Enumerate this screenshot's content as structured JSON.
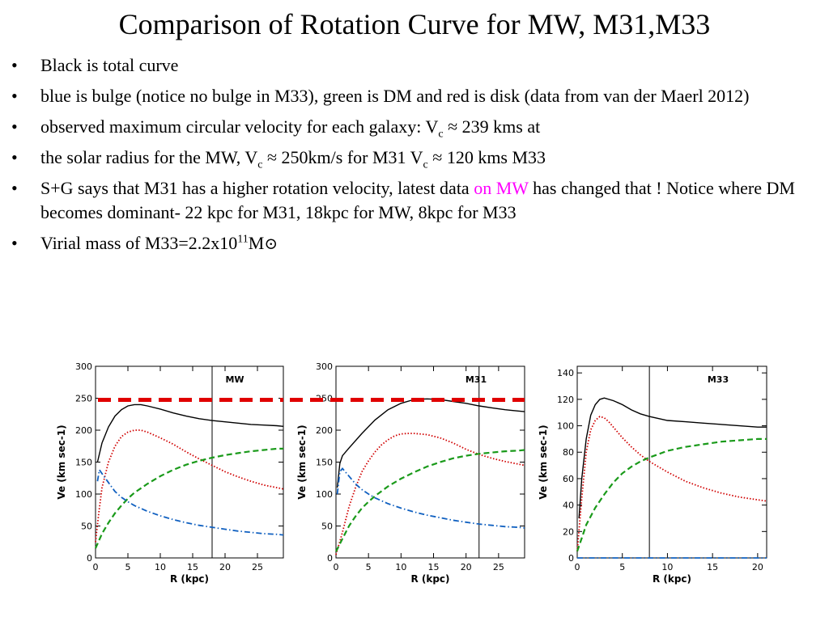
{
  "slide": {
    "title": "Comparison of Rotation Curve for MW, M31,M33",
    "bullet_marker": "•",
    "bullets": {
      "b1": "Black is total curve",
      "b2": "blue is bulge (notice no bulge in M33), green is DM and red is disk (data from van der Maerl 2012)",
      "b3_pre": "observed maximum circular velocity for each galaxy: V",
      "b3_sub": "c",
      "b3_post": " ≈ 239 kms at",
      "b4_pre": "the solar radius for the MW, V",
      "b4_sub1": "c",
      "b4_mid": " ≈ 250km/s  for M31 V",
      "b4_sub2": "c",
      "b4_post": " ≈ 120 kms M33",
      "b5_pre": "S+G says that M31 has a higher rotation velocity, latest data ",
      "b5_highlight": "on MW",
      "b5_post": " has changed that ! Notice where DM becomes dominant- 22 kpc for M31, 18kpc for MW, 8kpc for M33",
      "b6_pre": "Virial mass of M33=2.2x10",
      "b6_sup": "11",
      "b6_mid": "M",
      "b6_sun": "⊙"
    },
    "highlight_color": "#ff00ff",
    "reference_line_color": "#e00000"
  },
  "chart_data": [
    {
      "type": "line",
      "title": "MW",
      "xlabel": "R (kpc)",
      "ylabel": "Ve (km sec-1)",
      "xlim": [
        0,
        29
      ],
      "ylim": [
        0,
        300
      ],
      "xticks": [
        0,
        5,
        10,
        15,
        20,
        25
      ],
      "yticks": [
        0,
        50,
        100,
        150,
        200,
        250,
        300
      ],
      "vline": 18,
      "series": [
        {
          "color": "#000000",
          "style": "solid",
          "values": [
            [
              0.3,
              150
            ],
            [
              1,
              180
            ],
            [
              2,
              205
            ],
            [
              3,
              222
            ],
            [
              4,
              232
            ],
            [
              5,
              238
            ],
            [
              6,
              240
            ],
            [
              7,
              240
            ],
            [
              8,
              238
            ],
            [
              10,
              233
            ],
            [
              12,
              227
            ],
            [
              14,
              222
            ],
            [
              16,
              218
            ],
            [
              18,
              215
            ],
            [
              20,
              213
            ],
            [
              22,
              211
            ],
            [
              24,
              209
            ],
            [
              26,
              208
            ],
            [
              28,
              207
            ],
            [
              29,
              206
            ]
          ]
        },
        {
          "color": "#d00000",
          "style": "dotted",
          "values": [
            [
              0,
              25
            ],
            [
              0.5,
              70
            ],
            [
              1,
              110
            ],
            [
              2,
              150
            ],
            [
              3,
              175
            ],
            [
              4,
              190
            ],
            [
              5,
              197
            ],
            [
              6,
              200
            ],
            [
              7,
              200
            ],
            [
              8,
              197
            ],
            [
              10,
              188
            ],
            [
              12,
              178
            ],
            [
              14,
              166
            ],
            [
              16,
              155
            ],
            [
              18,
              145
            ],
            [
              20,
              135
            ],
            [
              22,
              127
            ],
            [
              24,
              120
            ],
            [
              26,
              114
            ],
            [
              28,
              110
            ],
            [
              29,
              108
            ]
          ]
        },
        {
          "color": "#1a9a1a",
          "style": "dashed",
          "values": [
            [
              0,
              15
            ],
            [
              1,
              38
            ],
            [
              2,
              55
            ],
            [
              3,
              70
            ],
            [
              4,
              82
            ],
            [
              5,
              93
            ],
            [
              6,
              102
            ],
            [
              8,
              116
            ],
            [
              10,
              128
            ],
            [
              12,
              138
            ],
            [
              14,
              146
            ],
            [
              16,
              152
            ],
            [
              18,
              157
            ],
            [
              20,
              161
            ],
            [
              22,
              164
            ],
            [
              24,
              167
            ],
            [
              26,
              169
            ],
            [
              28,
              171
            ],
            [
              29,
              171
            ]
          ]
        },
        {
          "color": "#1060c0",
          "style": "dashdot",
          "values": [
            [
              0.3,
              120
            ],
            [
              0.6,
              138
            ],
            [
              1,
              132
            ],
            [
              2,
              118
            ],
            [
              3,
              104
            ],
            [
              4,
              95
            ],
            [
              5,
              88
            ],
            [
              6,
              82
            ],
            [
              8,
              73
            ],
            [
              10,
              66
            ],
            [
              12,
              60
            ],
            [
              14,
              55
            ],
            [
              16,
              51
            ],
            [
              18,
              48
            ],
            [
              20,
              45
            ],
            [
              22,
              42
            ],
            [
              24,
              40
            ],
            [
              26,
              38
            ],
            [
              28,
              37
            ],
            [
              29,
              36
            ]
          ]
        }
      ]
    },
    {
      "type": "line",
      "title": "M31",
      "xlabel": "R (kpc)",
      "ylabel": "Ve (km sec-1)",
      "xlim": [
        0,
        29
      ],
      "ylim": [
        0,
        300
      ],
      "xticks": [
        0,
        5,
        10,
        15,
        20,
        25
      ],
      "yticks": [
        0,
        50,
        100,
        150,
        200,
        250,
        300
      ],
      "vline": 22,
      "series": [
        {
          "color": "#000000",
          "style": "solid",
          "values": [
            [
              0.2,
              110
            ],
            [
              0.6,
              148
            ],
            [
              1,
              160
            ],
            [
              2,
              172
            ],
            [
              4,
              195
            ],
            [
              6,
              216
            ],
            [
              8,
              232
            ],
            [
              10,
              242
            ],
            [
              12,
              248
            ],
            [
              14,
              249
            ],
            [
              16,
              248
            ],
            [
              18,
              245
            ],
            [
              20,
              242
            ],
            [
              22,
              238
            ],
            [
              24,
              235
            ],
            [
              26,
              232
            ],
            [
              28,
              230
            ],
            [
              29,
              229
            ]
          ]
        },
        {
          "color": "#d00000",
          "style": "dotted",
          "values": [
            [
              0,
              5
            ],
            [
              1,
              40
            ],
            [
              2,
              80
            ],
            [
              3,
              110
            ],
            [
              4,
              135
            ],
            [
              5,
              152
            ],
            [
              6,
              166
            ],
            [
              7,
              177
            ],
            [
              8,
              185
            ],
            [
              9,
              191
            ],
            [
              10,
              194
            ],
            [
              11,
              195
            ],
            [
              12,
              195
            ],
            [
              14,
              193
            ],
            [
              16,
              188
            ],
            [
              18,
              180
            ],
            [
              20,
              170
            ],
            [
              22,
              162
            ],
            [
              24,
              156
            ],
            [
              26,
              151
            ],
            [
              28,
              147
            ],
            [
              29,
              145
            ]
          ]
        },
        {
          "color": "#1a9a1a",
          "style": "dashed",
          "values": [
            [
              0,
              10
            ],
            [
              1,
              30
            ],
            [
              2,
              50
            ],
            [
              3,
              65
            ],
            [
              4,
              78
            ],
            [
              5,
              88
            ],
            [
              6,
              97
            ],
            [
              8,
              112
            ],
            [
              10,
              124
            ],
            [
              12,
              134
            ],
            [
              14,
              143
            ],
            [
              16,
              150
            ],
            [
              18,
              156
            ],
            [
              20,
              160
            ],
            [
              22,
              163
            ],
            [
              24,
              165
            ],
            [
              26,
              167
            ],
            [
              28,
              168
            ],
            [
              29,
              169
            ]
          ]
        },
        {
          "color": "#1060c0",
          "style": "dashdot",
          "values": [
            [
              0.2,
              100
            ],
            [
              0.6,
              135
            ],
            [
              1,
              140
            ],
            [
              2,
              128
            ],
            [
              3,
              116
            ],
            [
              4,
              107
            ],
            [
              5,
              100
            ],
            [
              6,
              94
            ],
            [
              8,
              85
            ],
            [
              10,
              78
            ],
            [
              12,
              72
            ],
            [
              14,
              67
            ],
            [
              16,
              63
            ],
            [
              18,
              59
            ],
            [
              20,
              56
            ],
            [
              22,
              53
            ],
            [
              24,
              51
            ],
            [
              26,
              49
            ],
            [
              28,
              48
            ],
            [
              29,
              47
            ]
          ]
        }
      ]
    },
    {
      "type": "line",
      "title": "M33",
      "xlabel": "R (kpc)",
      "ylabel": "Ve (km sec-1)",
      "xlim": [
        0,
        21
      ],
      "ylim": [
        0,
        145
      ],
      "xticks": [
        0,
        5,
        10,
        15,
        20
      ],
      "yticks": [
        0,
        20,
        40,
        60,
        80,
        100,
        120,
        140
      ],
      "vline": 8,
      "series": [
        {
          "color": "#000000",
          "style": "solid",
          "values": [
            [
              0.2,
              30
            ],
            [
              0.5,
              60
            ],
            [
              1,
              90
            ],
            [
              1.5,
              108
            ],
            [
              2,
              116
            ],
            [
              2.5,
              120
            ],
            [
              3,
              121
            ],
            [
              4,
              119
            ],
            [
              5,
              116
            ],
            [
              6,
              112
            ],
            [
              7,
              109
            ],
            [
              8,
              107
            ],
            [
              10,
              104
            ],
            [
              12,
              103
            ],
            [
              14,
              102
            ],
            [
              16,
              101
            ],
            [
              18,
              100
            ],
            [
              20,
              99
            ],
            [
              21,
              99
            ]
          ]
        },
        {
          "color": "#d00000",
          "style": "dotted",
          "values": [
            [
              0,
              5
            ],
            [
              0.5,
              45
            ],
            [
              1,
              80
            ],
            [
              1.5,
              97
            ],
            [
              2,
              104
            ],
            [
              2.5,
              107
            ],
            [
              3,
              106
            ],
            [
              3.5,
              103
            ],
            [
              4,
              99
            ],
            [
              5,
              91
            ],
            [
              6,
              84
            ],
            [
              7,
              78
            ],
            [
              8,
              73
            ],
            [
              10,
              65
            ],
            [
              12,
              58
            ],
            [
              14,
              53
            ],
            [
              16,
              49
            ],
            [
              18,
              46
            ],
            [
              20,
              44
            ],
            [
              21,
              43
            ]
          ]
        },
        {
          "color": "#1a9a1a",
          "style": "dashed",
          "values": [
            [
              0,
              5
            ],
            [
              0.5,
              15
            ],
            [
              1,
              25
            ],
            [
              2,
              38
            ],
            [
              3,
              48
            ],
            [
              4,
              57
            ],
            [
              5,
              64
            ],
            [
              6,
              69
            ],
            [
              7,
              73
            ],
            [
              8,
              76
            ],
            [
              10,
              81
            ],
            [
              12,
              84
            ],
            [
              14,
              86
            ],
            [
              16,
              88
            ],
            [
              18,
              89
            ],
            [
              20,
              90
            ],
            [
              21,
              90
            ]
          ]
        },
        {
          "color": "#1060c0",
          "style": "dashdot",
          "values": [
            [
              0,
              0
            ],
            [
              21,
              0
            ]
          ]
        }
      ]
    }
  ]
}
